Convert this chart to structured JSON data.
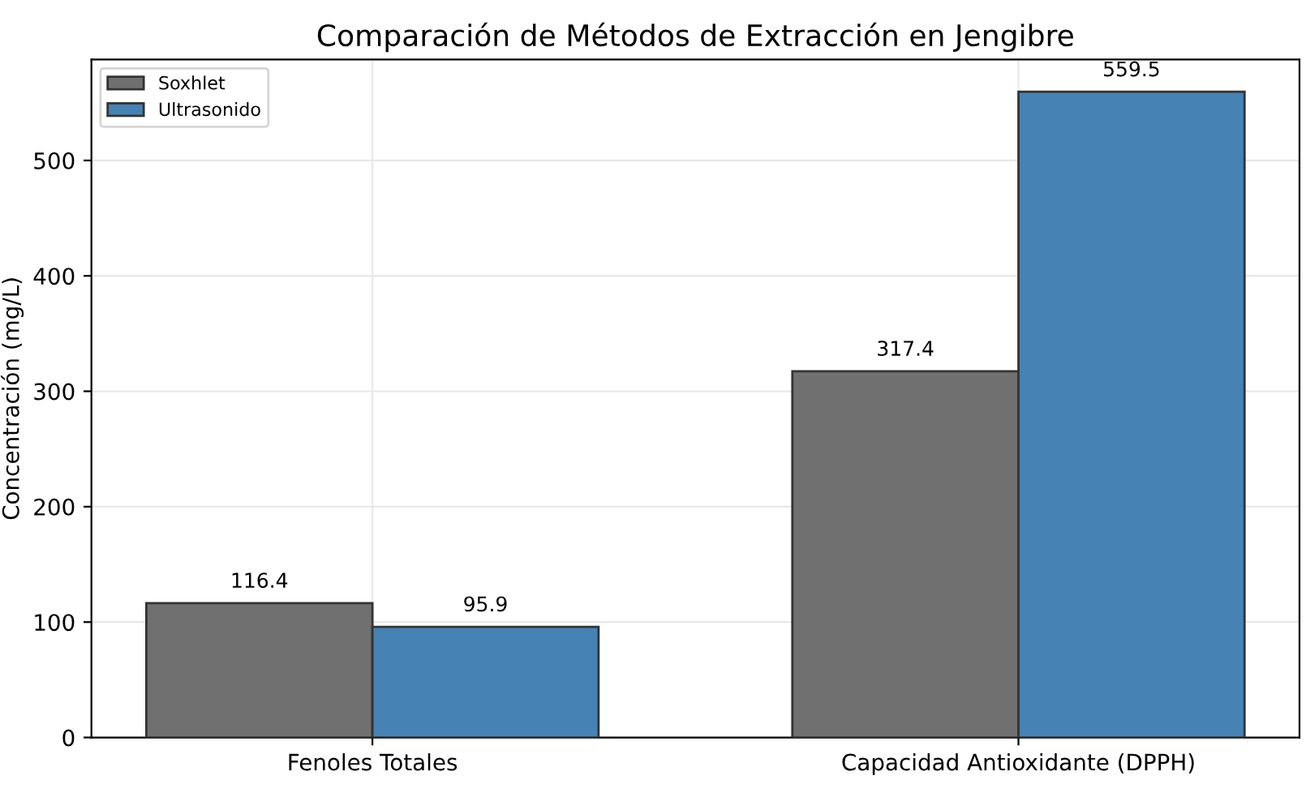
{
  "chart_data": {
    "type": "bar",
    "title": "Comparación de Métodos de Extracción en Jengibre",
    "ylabel": "Concentración (mg/L)",
    "categories": [
      "Fenoles Totales",
      "Capacidad Antioxidante (DPPH)"
    ],
    "series": [
      {
        "name": "Soxhlet",
        "color": "#707070",
        "values": [
          116.4,
          317.4
        ]
      },
      {
        "name": "Ultrasonido",
        "color": "#4682b4",
        "values": [
          95.9,
          559.5
        ]
      }
    ],
    "ylim": [
      0,
      587.5
    ],
    "yticks": [
      0,
      100,
      200,
      300,
      400,
      500
    ],
    "grid": true,
    "legend": "top left",
    "data_labels": true
  }
}
